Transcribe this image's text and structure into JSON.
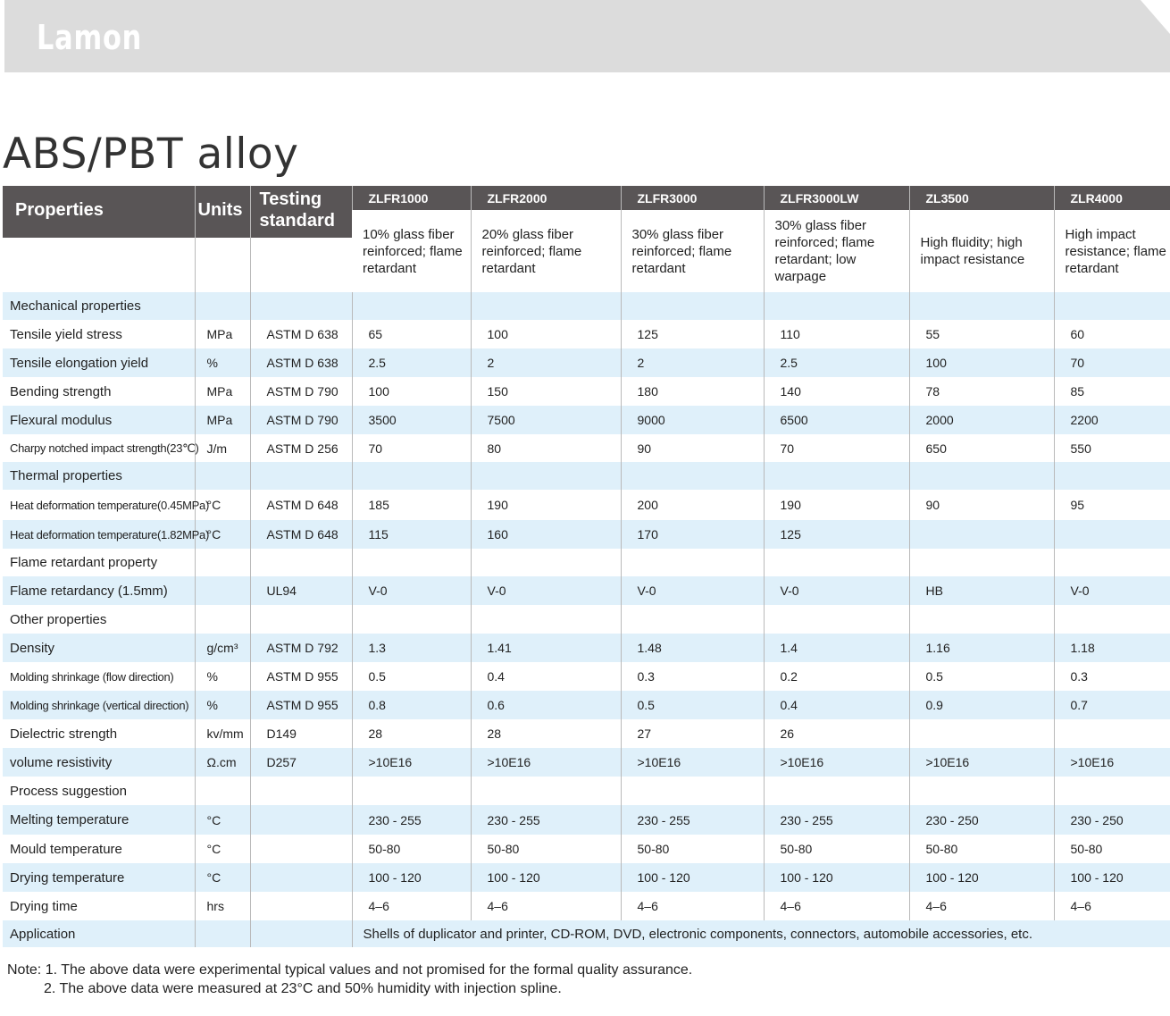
{
  "brand": "Lamon",
  "title": "ABS/PBT alloy",
  "header": {
    "properties": "Properties",
    "units": "Units",
    "standard": "Testing standard",
    "models": [
      "ZLFR1000",
      "ZLFR2000",
      "ZLFR3000",
      "ZLFR3000LW",
      "ZL3500",
      "ZLR4000"
    ],
    "descriptions": [
      "10% glass fiber reinforced; flame retardant",
      "20% glass fiber reinforced; flame retardant",
      "30% glass fiber reinforced; flame retardant",
      "30% glass fiber reinforced; flame retardant; low warpage",
      "High fluidity; high impact resistance",
      "High impact resistance; flame retardant"
    ]
  },
  "rows": [
    {
      "section": "Mechanical properties"
    },
    {
      "label": "Tensile yield stress",
      "unit": "MPa",
      "standard": "ASTM D 638",
      "values": [
        "65",
        "100",
        "125",
        "110",
        "55",
        "60"
      ]
    },
    {
      "label": "Tensile elongation yield",
      "unit": "%",
      "standard": "ASTM D 638",
      "values": [
        "2.5",
        "2",
        "2",
        "2.5",
        "100",
        "70"
      ]
    },
    {
      "label": "Bending strength",
      "unit": "MPa",
      "standard": "ASTM D 790",
      "values": [
        "100",
        "150",
        "180",
        "140",
        "78",
        "85"
      ]
    },
    {
      "label": "Flexural modulus",
      "unit": "MPa",
      "standard": "ASTM D 790",
      "values": [
        "3500",
        "7500",
        "9000",
        "6500",
        "2000",
        "2200"
      ]
    },
    {
      "label": "Charpy notched impact strength(23℃)",
      "small": true,
      "unit": "J/m",
      "standard": "ASTM D 256",
      "values": [
        "70",
        "80",
        "90",
        "70",
        "650",
        "550"
      ]
    },
    {
      "section": "Thermal properties"
    },
    {
      "label": "Heat deformation temperature(0.45MPa)",
      "small": true,
      "unit": "°C",
      "standard": "ASTM D 648",
      "values": [
        "185",
        "190",
        "200",
        "190",
        "90",
        "95"
      ]
    },
    {
      "label": "Heat deformation temperature(1.82MPa)",
      "small": true,
      "unit": "°C",
      "standard": "ASTM D 648",
      "values": [
        "115",
        "160",
        "170",
        "125",
        "",
        ""
      ]
    },
    {
      "section": "Flame retardant property"
    },
    {
      "label": "Flame retardancy (1.5mm)",
      "unit": "",
      "standard": "UL94",
      "values": [
        "V-0",
        "V-0",
        "V-0",
        "V-0",
        "HB",
        "V-0"
      ]
    },
    {
      "section": "Other properties"
    },
    {
      "label": "Density",
      "unit": "g/cm³",
      "standard": "ASTM D 792",
      "values": [
        "1.3",
        "1.41",
        "1.48",
        "1.4",
        "1.16",
        "1.18"
      ]
    },
    {
      "label": "Molding shrinkage (flow direction)",
      "small": true,
      "unit": "%",
      "standard": "ASTM D 955",
      "values": [
        "0.5",
        "0.4",
        "0.3",
        "0.2",
        "0.5",
        "0.3"
      ]
    },
    {
      "label": "Molding shrinkage (vertical direction)",
      "small": true,
      "unit": "%",
      "standard": "ASTM D 955",
      "values": [
        "0.8",
        "0.6",
        "0.5",
        "0.4",
        "0.9",
        "0.7"
      ]
    },
    {
      "label": "Dielectric strength",
      "unit": "kv/mm",
      "standard": "D149",
      "values": [
        "28",
        "28",
        "27",
        "26",
        "",
        ""
      ]
    },
    {
      "label": "volume resistivity",
      "unit": "Ω.cm",
      "standard": "D257",
      "values": [
        ">10E16",
        ">10E16",
        ">10E16",
        ">10E16",
        ">10E16",
        ">10E16"
      ]
    },
    {
      "section": "Process suggestion"
    },
    {
      "label": "Melting temperature",
      "unit": "°C",
      "standard": "",
      "values": [
        "230 - 255",
        "230 - 255",
        "230 - 255",
        "230 - 255",
        "230 - 250",
        "230 - 250"
      ]
    },
    {
      "label": "Mould temperature",
      "unit": "°C",
      "standard": "",
      "values": [
        "50-80",
        "50-80",
        "50-80",
        "50-80",
        "50-80",
        "50-80"
      ]
    },
    {
      "label": "Drying temperature",
      "unit": "°C",
      "standard": "",
      "values": [
        "100 - 120",
        "100 - 120",
        "100 - 120",
        "100 - 120",
        "100 - 120",
        "100 - 120"
      ]
    },
    {
      "label": "Drying time",
      "unit": "hrs",
      "standard": "",
      "values": [
        "4–6",
        "4–6",
        "4–6",
        "4–6",
        "4–6",
        "4–6"
      ]
    },
    {
      "label": "Application",
      "unit": "",
      "standard": "",
      "span_value": "Shells of duplicator and printer, CD-ROM, DVD, electronic components, connectors, automobile accessories, etc."
    }
  ],
  "notes": [
    "Note: 1. The above data were experimental typical values and not promised for the formal quality assurance.",
    "2. The above data were measured at 23°C and 50% humidity with injection spline."
  ],
  "colors": {
    "header_bg": "#595556",
    "row_blue": "#dff0fa",
    "banner": "#dcdcdc"
  }
}
